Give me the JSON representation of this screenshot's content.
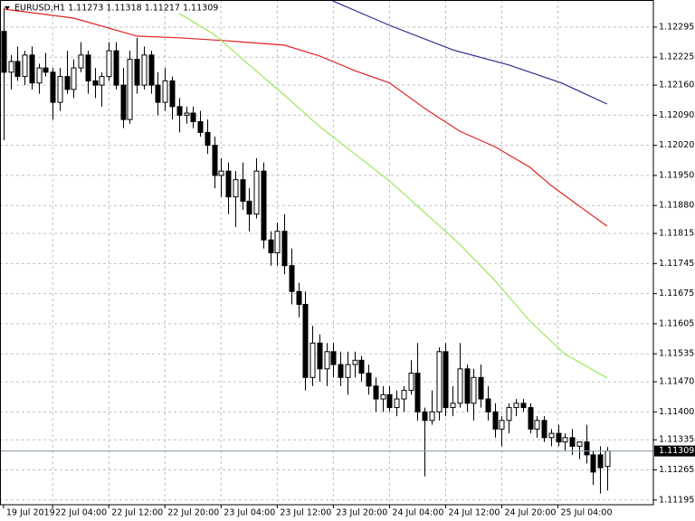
{
  "chart_data": {
    "type": "candlestick",
    "title": "EURUSD,H1  1.11273 1.11318 1.11217 1.11309",
    "ylim": [
      1.11184,
      1.12358
    ],
    "yticks": [
      1.12295,
      1.12225,
      {
        "value": 1.1216,
        "label": "1.12160"
      },
      {
        "value": 1.1209,
        "label": "1.12090"
      },
      {
        "value": 1.1202,
        "label": "1.12020"
      },
      {
        "value": 1.1195,
        "label": "1.11950"
      },
      {
        "value": 1.1188,
        "label": "1.11880"
      },
      1.11815,
      1.11745,
      1.11675,
      1.11605,
      1.11535,
      {
        "value": 1.1147,
        "label": "1.11470"
      },
      {
        "value": 1.114,
        "label": "1.11400"
      },
      1.11335,
      1.11265,
      1.11195
    ],
    "xlim": [
      -0.5,
      92.6
    ],
    "xticks": [
      {
        "value": 0,
        "label": "19 Jul 2019"
      },
      {
        "value": 7,
        "label": "22 Jul 04:00"
      },
      {
        "value": 15,
        "label": "22 Jul 12:00"
      },
      {
        "value": 23,
        "label": "22 Jul 20:00"
      },
      {
        "value": 31,
        "label": "23 Jul 04:00"
      },
      {
        "value": 39,
        "label": "23 Jul 12:00"
      },
      {
        "value": 47,
        "label": "23 Jul 20:00"
      },
      {
        "value": 55,
        "label": "24 Jul 04:00"
      },
      {
        "value": 63,
        "label": "24 Jul 12:00"
      },
      {
        "value": 71,
        "label": "24 Jul 20:00"
      },
      {
        "value": 79,
        "label": "25 Jul 04:00"
      }
    ],
    "grid": true,
    "up_color": "#ffffff",
    "down_color": "#000000",
    "wick_color": "#000000",
    "open": [
      1.12285,
      1.1219,
      1.12215,
      1.1218,
      1.1223,
      1.12165,
      1.122,
      1.1219,
      1.1212,
      1.1218,
      1.1215,
      1.122,
      1.1223,
      1.1217,
      1.1216,
      1.1218,
      1.1224,
      1.1216,
      1.1208,
      1.1222,
      1.1216,
      1.1223,
      1.1216,
      1.1212,
      1.1217,
      1.1211,
      1.1209,
      1.12095,
      1.12075,
      1.1205,
      1.1202,
      1.1195,
      1.1196,
      1.119,
      1.1194,
      1.1189,
      1.1186,
      1.1196,
      1.118,
      1.1177,
      1.1182,
      1.1174,
      1.1168,
      1.1165,
      1.1148,
      1.1156,
      1.115,
      1.1154,
      1.1151,
      1.1148,
      1.1151,
      1.1152,
      1.1149,
      1.1146,
      1.1143,
      1.1144,
      1.1141,
      1.1143,
      1.1145,
      1.1149,
      1.114,
      1.1138,
      1.114,
      1.1154,
      1.1141,
      1.1142,
      1.115,
      1.1142,
      1.1148,
      1.1143,
      1.114,
      1.1136,
      1.1138,
      1.1141,
      1.1142,
      1.1141,
      1.1136,
      1.1138,
      1.1134,
      1.1135,
      1.1133,
      1.1134,
      1.1132,
      1.1133,
      1.113,
      1.113,
      1.11273
    ],
    "high": [
      1.1234,
      1.1223,
      1.1225,
      1.1224,
      1.1225,
      1.1221,
      1.12235,
      1.122,
      1.122,
      1.1224,
      1.1222,
      1.1226,
      1.1224,
      1.122,
      1.1219,
      1.1226,
      1.1226,
      1.122,
      1.1224,
      1.1227,
      1.1225,
      1.1224,
      1.1219,
      1.122,
      1.1218,
      1.1213,
      1.1211,
      1.1211,
      1.121,
      1.1208,
      1.1204,
      1.1199,
      1.1198,
      1.1196,
      1.1198,
      1.1192,
      1.1199,
      1.1198,
      1.1182,
      1.1184,
      1.1186,
      1.1178,
      1.117,
      1.1168,
      1.116,
      1.1158,
      1.1156,
      1.1156,
      1.1154,
      1.1154,
      1.1154,
      1.1153,
      1.1151,
      1.1148,
      1.1146,
      1.1146,
      1.1145,
      1.1146,
      1.1152,
      1.1156,
      1.1141,
      1.1145,
      1.1155,
      1.1156,
      1.1146,
      1.1156,
      1.1151,
      1.115,
      1.1151,
      1.1146,
      1.1142,
      1.1139,
      1.1142,
      1.1143,
      1.1143,
      1.1142,
      1.1139,
      1.1139,
      1.1136,
      1.1137,
      1.1135,
      1.1136,
      1.1133,
      1.1137,
      1.1131,
      1.1132,
      1.11318
    ],
    "low": [
      1.12032,
      1.1215,
      1.1217,
      1.1216,
      1.1215,
      1.1214,
      1.1218,
      1.1208,
      1.121,
      1.1214,
      1.1213,
      1.1219,
      1.1214,
      1.1213,
      1.1211,
      1.1217,
      1.1215,
      1.1206,
      1.1207,
      1.1214,
      1.1215,
      1.1214,
      1.1209,
      1.121,
      1.1208,
      1.1205,
      1.1207,
      1.1206,
      1.1204,
      1.12,
      1.1192,
      1.119,
      1.1186,
      1.1183,
      1.1187,
      1.1182,
      1.1185,
      1.1178,
      1.1174,
      1.1174,
      1.1172,
      1.1165,
      1.1162,
      1.1145,
      1.1146,
      1.1147,
      1.1146,
      1.1148,
      1.1146,
      1.1144,
      1.1148,
      1.1147,
      1.1144,
      1.114,
      1.114,
      1.114,
      1.1139,
      1.114,
      1.1144,
      1.1138,
      1.1125,
      1.1137,
      1.1138,
      1.1139,
      1.1139,
      1.1141,
      1.114,
      1.1138,
      1.1141,
      1.1138,
      1.1134,
      1.1132,
      1.1135,
      1.1139,
      1.114,
      1.1135,
      1.1134,
      1.1133,
      1.1132,
      1.1132,
      1.1131,
      1.113,
      1.1129,
      1.1128,
      1.1123,
      1.1121,
      1.11217
    ],
    "close": [
      1.1219,
      1.12215,
      1.1218,
      1.1223,
      1.12165,
      1.122,
      1.1219,
      1.1212,
      1.1218,
      1.1215,
      1.122,
      1.1223,
      1.1217,
      1.1216,
      1.1218,
      1.1224,
      1.1216,
      1.1208,
      1.1222,
      1.1216,
      1.1223,
      1.1216,
      1.1212,
      1.1217,
      1.1211,
      1.1209,
      1.12095,
      1.12075,
      1.1205,
      1.1202,
      1.1195,
      1.1196,
      1.119,
      1.1194,
      1.1189,
      1.1186,
      1.1196,
      1.118,
      1.1177,
      1.1182,
      1.1174,
      1.1168,
      1.1165,
      1.1148,
      1.1156,
      1.115,
      1.1154,
      1.1151,
      1.1148,
      1.1151,
      1.1152,
      1.1149,
      1.1146,
      1.1143,
      1.1144,
      1.1141,
      1.1143,
      1.1145,
      1.1149,
      1.114,
      1.1138,
      1.114,
      1.1154,
      1.1141,
      1.1142,
      1.115,
      1.1142,
      1.1148,
      1.1143,
      1.114,
      1.1136,
      1.1138,
      1.1141,
      1.1142,
      1.1141,
      1.1136,
      1.1138,
      1.1134,
      1.1135,
      1.1133,
      1.1134,
      1.1132,
      1.1133,
      1.113,
      1.1126,
      1.1127,
      1.11309
    ],
    "lines": [
      {
        "color": "#2b2b8f",
        "x": [
          46.6,
          55,
          64,
          72,
          79.5,
          86
        ],
        "values": [
          1.12358,
          1.12299,
          1.12242,
          1.12207,
          1.12165,
          1.12116
        ]
      },
      {
        "color": "#e32222",
        "x": [
          0,
          10,
          19,
          25,
          32,
          40,
          45,
          50,
          55,
          60,
          65,
          70,
          75,
          78,
          82,
          86
        ],
        "values": [
          1.12337,
          1.12316,
          1.12274,
          1.1227,
          1.12263,
          1.12253,
          1.12228,
          1.12194,
          1.12165,
          1.12106,
          1.12053,
          1.12017,
          1.11969,
          1.11927,
          1.11879,
          1.11832
        ]
      },
      {
        "color": "#9be85a",
        "x": [
          25,
          30,
          35,
          40,
          45,
          50,
          55,
          60,
          65,
          70,
          75,
          80,
          86
        ],
        "values": [
          1.12327,
          1.12278,
          1.12207,
          1.12137,
          1.12064,
          1.12001,
          1.11937,
          1.11864,
          1.1179,
          1.11706,
          1.11611,
          1.11534,
          1.11479
        ]
      }
    ],
    "last_price": 1.11309,
    "last_price_color": "#8899aa"
  }
}
